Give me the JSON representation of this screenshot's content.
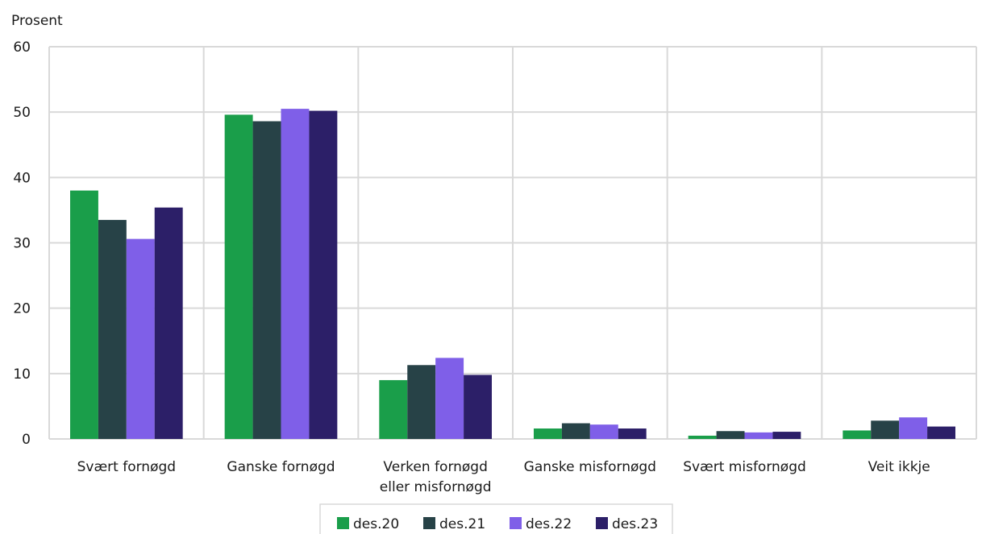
{
  "chart_data": {
    "type": "bar",
    "ylabel": "Prosent",
    "ylim": [
      0,
      60
    ],
    "yticks": [
      0,
      10,
      20,
      30,
      40,
      50,
      60
    ],
    "grid": true,
    "legend_position": "bottom-center",
    "categories": [
      [
        "Svært fornøgd"
      ],
      [
        "Ganske fornøgd"
      ],
      [
        "Verken fornøgd",
        "eller misfornøgd"
      ],
      [
        "Ganske misfornøgd"
      ],
      [
        "Svært misfornøgd"
      ],
      [
        "Veit ikkje"
      ]
    ],
    "series": [
      {
        "name": "des.20",
        "color": "#1a9e4a",
        "values": [
          38.0,
          49.6,
          9.0,
          1.6,
          0.5,
          1.3
        ]
      },
      {
        "name": "des.21",
        "color": "#274247",
        "values": [
          33.5,
          48.6,
          11.3,
          2.4,
          1.2,
          2.8
        ]
      },
      {
        "name": "des.22",
        "color": "#7f5fe8",
        "values": [
          30.6,
          50.5,
          12.4,
          2.2,
          1.0,
          3.3
        ]
      },
      {
        "name": "des.23",
        "color": "#2c1f68",
        "values": [
          35.4,
          50.2,
          9.8,
          1.6,
          1.1,
          1.9
        ]
      }
    ]
  }
}
